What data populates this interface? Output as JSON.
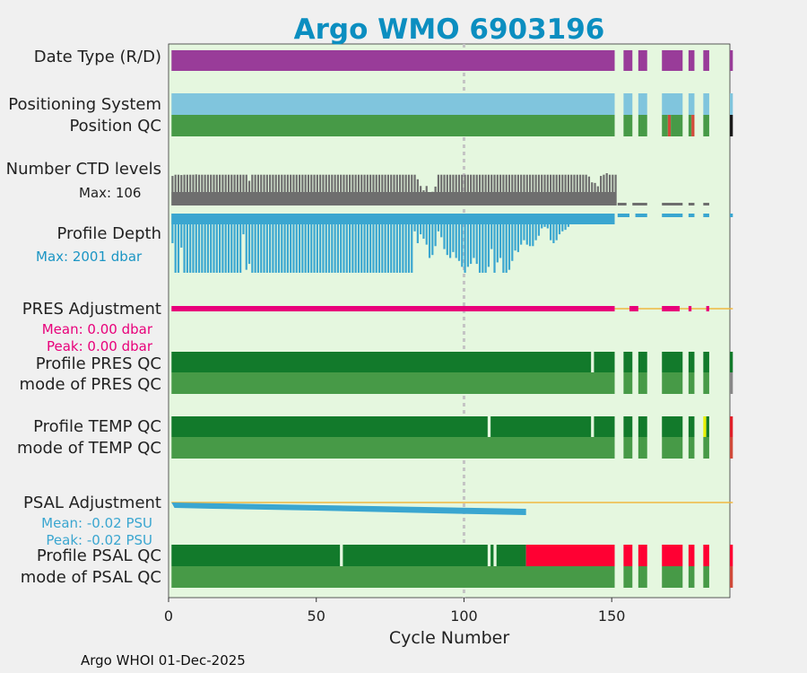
{
  "chart_data": {
    "type": "bar",
    "title": "Argo WMO 6903196",
    "xlabel": "Cycle Number",
    "xlim": [
      0,
      190
    ],
    "xticks": [
      0,
      50,
      100,
      150
    ],
    "reference_cycle": 100,
    "footer": "Argo WHOI 01-Dec-2025",
    "rows": [
      {
        "label": "Date Type (R/D)",
        "type": "segments",
        "segments": [
          [
            1,
            151,
            "#993c99"
          ],
          [
            154,
            157,
            "#993c99"
          ],
          [
            159,
            162,
            "#993c99"
          ],
          [
            167,
            174,
            "#993c99"
          ],
          [
            176,
            178,
            "#993c99"
          ],
          [
            181,
            183,
            "#993c99"
          ],
          [
            190,
            191,
            "#993c99"
          ]
        ]
      },
      {
        "label": "Positioning System",
        "type": "segments",
        "segments": [
          [
            1,
            151,
            "#80c5dd"
          ],
          [
            154,
            157,
            "#80c5dd"
          ],
          [
            159,
            162,
            "#80c5dd"
          ],
          [
            167,
            174,
            "#80c5dd"
          ],
          [
            176,
            178,
            "#80c5dd"
          ],
          [
            181,
            183,
            "#80c5dd"
          ],
          [
            190,
            191,
            "#80c5dd"
          ]
        ]
      },
      {
        "label": "Position QC",
        "type": "segments",
        "segments": [
          [
            1,
            151,
            "#479a47"
          ],
          [
            154,
            157,
            "#479a47"
          ],
          [
            159,
            162,
            "#479a47"
          ],
          [
            167,
            169,
            "#479a47"
          ],
          [
            169,
            170,
            "#d04a3a"
          ],
          [
            170,
            174,
            "#479a47"
          ],
          [
            176,
            177,
            "#479a47"
          ],
          [
            177,
            178,
            "#d04a3a"
          ],
          [
            181,
            183,
            "#479a47"
          ],
          [
            190,
            191,
            "#1a1a1a"
          ]
        ]
      },
      {
        "label": "Number CTD levels",
        "type": "levels",
        "max_label": "Max: 106",
        "max": 106
      },
      {
        "label": "Profile Depth",
        "type": "depth",
        "max_label": "Max: 2001 dbar",
        "max": 2001
      },
      {
        "label": "PRES Adjustment",
        "type": "adjustment",
        "color": "#e8007a",
        "mean_label": "Mean: 0.00 dbar",
        "peak_label": "Peak: 0.00 dbar"
      },
      {
        "label": "Profile PRES QC",
        "type": "segments",
        "segments": [
          [
            1,
            143,
            "#127a2b"
          ],
          [
            144,
            151,
            "#127a2b"
          ],
          [
            154,
            157,
            "#127a2b"
          ],
          [
            159,
            162,
            "#127a2b"
          ],
          [
            167,
            174,
            "#127a2b"
          ],
          [
            176,
            178,
            "#127a2b"
          ],
          [
            181,
            183,
            "#127a2b"
          ],
          [
            190,
            191,
            "#127a2b"
          ]
        ]
      },
      {
        "label": "mode of PRES QC",
        "type": "segments",
        "segments": [
          [
            1,
            151,
            "#479a47"
          ],
          [
            154,
            157,
            "#479a47"
          ],
          [
            159,
            162,
            "#479a47"
          ],
          [
            167,
            174,
            "#479a47"
          ],
          [
            176,
            178,
            "#479a47"
          ],
          [
            181,
            183,
            "#479a47"
          ],
          [
            190,
            191,
            "#888888"
          ]
        ]
      },
      {
        "label": "Profile TEMP QC",
        "type": "segments",
        "segments": [
          [
            1,
            108,
            "#127a2b"
          ],
          [
            109,
            143,
            "#127a2b"
          ],
          [
            144,
            151,
            "#127a2b"
          ],
          [
            154,
            157,
            "#127a2b"
          ],
          [
            159,
            162,
            "#127a2b"
          ],
          [
            167,
            174,
            "#127a2b"
          ],
          [
            176,
            178,
            "#127a2b"
          ],
          [
            181,
            182,
            "#e8f000"
          ],
          [
            182,
            183,
            "#127a2b"
          ],
          [
            190,
            191,
            "#e0202a"
          ]
        ]
      },
      {
        "label": "mode of TEMP QC",
        "type": "segments",
        "segments": [
          [
            1,
            151,
            "#479a47"
          ],
          [
            154,
            157,
            "#479a47"
          ],
          [
            159,
            162,
            "#479a47"
          ],
          [
            167,
            174,
            "#479a47"
          ],
          [
            176,
            178,
            "#479a47"
          ],
          [
            181,
            183,
            "#479a47"
          ],
          [
            190,
            191,
            "#d04a3a"
          ]
        ]
      },
      {
        "label": "PSAL Adjustment",
        "type": "adjustment",
        "color": "#3aa6d0",
        "mean_label": "Mean: -0.02 PSU",
        "peak_label": "Peak: -0.02 PSU"
      },
      {
        "label": "Profile PSAL QC",
        "type": "segments",
        "segments": [
          [
            1,
            58,
            "#127a2b"
          ],
          [
            59,
            108,
            "#127a2b"
          ],
          [
            109,
            110,
            "#127a2b"
          ],
          [
            111,
            121,
            "#127a2b"
          ],
          [
            121,
            151,
            "#ff0033"
          ],
          [
            154,
            157,
            "#ff0033"
          ],
          [
            159,
            162,
            "#ff0033"
          ],
          [
            167,
            174,
            "#ff0033"
          ],
          [
            176,
            178,
            "#ff0033"
          ],
          [
            181,
            183,
            "#ff0033"
          ],
          [
            190,
            191,
            "#ff0033"
          ]
        ]
      },
      {
        "label": "mode of PSAL QC",
        "type": "segments",
        "segments": [
          [
            1,
            151,
            "#479a47"
          ],
          [
            154,
            157,
            "#479a47"
          ],
          [
            159,
            162,
            "#479a47"
          ],
          [
            167,
            174,
            "#479a47"
          ],
          [
            176,
            178,
            "#479a47"
          ],
          [
            181,
            183,
            "#479a47"
          ],
          [
            190,
            191,
            "#d04a3a"
          ]
        ]
      }
    ],
    "ctd_levels": [
      97,
      101,
      101,
      100,
      101,
      101,
      101,
      101,
      102,
      101,
      101,
      101,
      101,
      101,
      101,
      101,
      101,
      101,
      101,
      101,
      101,
      101,
      101,
      101,
      101,
      101,
      81,
      101,
      101,
      101,
      101,
      101,
      101,
      101,
      101,
      101,
      101,
      101,
      101,
      101,
      101,
      101,
      101,
      101,
      101,
      101,
      101,
      101,
      101,
      101,
      101,
      101,
      101,
      101,
      101,
      101,
      101,
      101,
      101,
      101,
      101,
      101,
      101,
      101,
      101,
      101,
      101,
      101,
      101,
      101,
      101,
      101,
      101,
      101,
      101,
      101,
      101,
      101,
      101,
      101,
      101,
      101,
      101,
      86,
      64,
      50,
      64,
      44,
      45,
      62,
      101,
      101,
      101,
      101,
      101,
      101,
      101,
      101,
      101,
      101,
      101,
      101,
      101,
      101,
      101,
      101,
      101,
      101,
      101,
      101,
      101,
      101,
      101,
      101,
      101,
      101,
      101,
      101,
      101,
      101,
      101,
      101,
      101,
      101,
      101,
      101,
      101,
      101,
      101,
      101,
      101,
      101,
      101,
      101,
      101,
      101,
      101,
      101,
      101,
      101,
      101,
      95,
      76,
      74,
      63,
      97,
      101,
      106,
      101,
      101,
      101
    ],
    "depth_levels": [
      1000,
      2000,
      2000,
      1150,
      2000,
      2000,
      2000,
      2000,
      2000,
      2000,
      2000,
      2000,
      2000,
      2000,
      2000,
      2000,
      2000,
      2000,
      2000,
      2000,
      2000,
      2000,
      2000,
      2000,
      700,
      1900,
      1700,
      2000,
      2000,
      2000,
      2000,
      2000,
      2000,
      2000,
      2000,
      2000,
      2000,
      2000,
      2000,
      2000,
      2000,
      2000,
      2000,
      2000,
      2000,
      2000,
      2000,
      2000,
      2000,
      2000,
      2000,
      2000,
      2000,
      2000,
      2000,
      2000,
      2000,
      2000,
      2000,
      2000,
      2000,
      2000,
      2000,
      2000,
      2000,
      2000,
      2000,
      2000,
      2000,
      2000,
      2000,
      2000,
      2000,
      2000,
      2000,
      2000,
      2000,
      2000,
      2000,
      2000,
      2000,
      2000,
      600,
      1000,
      700,
      850,
      1050,
      1500,
      1400,
      1100,
      600,
      800,
      1200,
      1400,
      1500,
      1300,
      1500,
      1600,
      1800,
      2000,
      1800,
      1700,
      1500,
      1700,
      2000,
      2000,
      2000,
      1800,
      1200,
      2000,
      1650,
      1500,
      2000,
      2000,
      1900,
      1600,
      1250,
      1300,
      1050,
      900,
      1050,
      1100,
      1100,
      900,
      750,
      500,
      450,
      500,
      900,
      1000,
      900,
      700,
      600,
      550,
      450,
      300,
      260
    ]
  }
}
